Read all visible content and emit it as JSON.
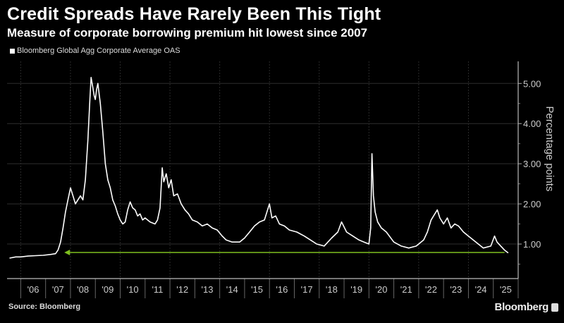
{
  "header": {
    "title": "Credit Spreads Have Rarely Been This Tight",
    "subtitle": "Measure of corporate borrowing premium hit lowest since 2007"
  },
  "footer": {
    "source": "Source: Bloomberg",
    "brand": "Bloomberg"
  },
  "chart_data": {
    "type": "line",
    "title": "Credit Spreads Have Rarely Been This Tight",
    "subtitle": "Measure of corporate borrowing premium hit lowest since 2007",
    "ylabel": "Percentage points",
    "xlabel": "",
    "xlim": [
      2005.45,
      2026.0
    ],
    "ylim": [
      0.14,
      5.55
    ],
    "y_axis_side": "right",
    "grid": true,
    "legend_placement": "top-left",
    "x_ticks": [
      2006,
      2007,
      2008,
      2009,
      2010,
      2011,
      2012,
      2013,
      2014,
      2015,
      2016,
      2017,
      2018,
      2019,
      2020,
      2021,
      2022,
      2023,
      2024,
      2025
    ],
    "x_tick_labels": [
      "'06",
      "'07",
      "'08",
      "'09",
      "'10",
      "'11",
      "'12",
      "'13",
      "'14",
      "'15",
      "'16",
      "'17",
      "'18",
      "'19",
      "'20",
      "'21",
      "'22",
      "'23",
      "'24",
      "'25"
    ],
    "y_ticks": [
      1,
      2,
      3,
      4,
      5
    ],
    "y_tick_labels": [
      "1.00",
      "2.00",
      "3.00",
      "4.00",
      "5.00"
    ],
    "series": [
      {
        "name": "Bloomberg Global Agg Corporate Average OAS",
        "color": "#ffffff",
        "x": [
          2005.55,
          2005.8,
          2006.0,
          2006.3,
          2006.6,
          2006.9,
          2007.2,
          2007.4,
          2007.5,
          2007.6,
          2007.7,
          2007.8,
          2007.9,
          2008.0,
          2008.1,
          2008.2,
          2008.3,
          2008.4,
          2008.5,
          2008.6,
          2008.7,
          2008.78,
          2008.83,
          2008.9,
          2008.95,
          2009.0,
          2009.05,
          2009.1,
          2009.2,
          2009.3,
          2009.4,
          2009.5,
          2009.6,
          2009.7,
          2009.8,
          2009.9,
          2010.0,
          2010.1,
          2010.2,
          2010.3,
          2010.4,
          2010.5,
          2010.6,
          2010.7,
          2010.8,
          2010.9,
          2011.0,
          2011.2,
          2011.4,
          2011.5,
          2011.6,
          2011.69,
          2011.75,
          2011.85,
          2011.95,
          2012.05,
          2012.15,
          2012.3,
          2012.45,
          2012.6,
          2012.75,
          2012.9,
          2013.1,
          2013.3,
          2013.5,
          2013.7,
          2013.9,
          2014.1,
          2014.26,
          2014.5,
          2014.8,
          2015.0,
          2015.2,
          2015.4,
          2015.6,
          2015.8,
          2016.0,
          2016.1,
          2016.25,
          2016.4,
          2016.6,
          2016.8,
          2017.1,
          2017.4,
          2017.65,
          2017.9,
          2018.2,
          2018.5,
          2018.75,
          2018.9,
          2019.1,
          2019.35,
          2019.6,
          2019.8,
          2020.0,
          2020.07,
          2020.12,
          2020.18,
          2020.25,
          2020.35,
          2020.5,
          2020.7,
          2021.0,
          2021.3,
          2021.6,
          2021.9,
          2022.2,
          2022.35,
          2022.5,
          2022.6,
          2022.75,
          2022.85,
          2023.0,
          2023.15,
          2023.3,
          2023.45,
          2023.6,
          2023.8,
          2024.0,
          2024.3,
          2024.6,
          2024.9,
          2025.05,
          2025.15,
          2025.3,
          2025.45,
          2025.6
        ],
        "y": [
          0.65,
          0.68,
          0.68,
          0.7,
          0.71,
          0.72,
          0.74,
          0.76,
          0.85,
          1.05,
          1.4,
          1.8,
          2.1,
          2.4,
          2.2,
          2.0,
          2.1,
          2.2,
          2.1,
          2.6,
          3.6,
          4.6,
          5.15,
          4.9,
          4.7,
          4.6,
          4.85,
          5.0,
          4.5,
          3.8,
          3.0,
          2.6,
          2.4,
          2.1,
          1.95,
          1.75,
          1.6,
          1.5,
          1.55,
          1.85,
          2.05,
          1.9,
          1.85,
          1.7,
          1.75,
          1.6,
          1.65,
          1.55,
          1.5,
          1.6,
          1.9,
          2.9,
          2.55,
          2.75,
          2.4,
          2.6,
          2.2,
          2.25,
          2.0,
          1.85,
          1.75,
          1.6,
          1.55,
          1.45,
          1.5,
          1.4,
          1.35,
          1.2,
          1.1,
          1.05,
          1.05,
          1.15,
          1.3,
          1.45,
          1.55,
          1.6,
          2.0,
          1.65,
          1.7,
          1.5,
          1.45,
          1.35,
          1.3,
          1.2,
          1.1,
          1.0,
          0.95,
          1.15,
          1.3,
          1.55,
          1.3,
          1.2,
          1.1,
          1.05,
          1.0,
          1.4,
          3.25,
          2.2,
          1.8,
          1.55,
          1.4,
          1.3,
          1.05,
          0.95,
          0.9,
          0.95,
          1.1,
          1.3,
          1.6,
          1.7,
          1.85,
          1.65,
          1.5,
          1.65,
          1.4,
          1.5,
          1.45,
          1.3,
          1.2,
          1.05,
          0.9,
          0.95,
          1.2,
          1.05,
          0.95,
          0.85,
          0.78
        ]
      }
    ],
    "annotations": [
      {
        "type": "horizontal-arrow",
        "color": "#7fbf1f",
        "y": 0.79,
        "x_from": 2025.45,
        "x_to": 2007.75,
        "direction": "left"
      }
    ]
  }
}
